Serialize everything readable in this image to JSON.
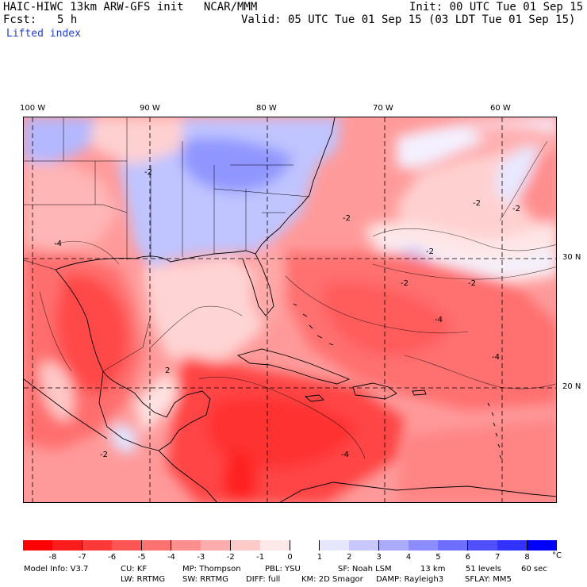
{
  "header": {
    "model_line": "HAIC-HIWC 13km ARW-GFS init   NCAR/MMM",
    "init_line": "Init: 00 UTC Tue 01 Sep 15",
    "fcst_label": "Fcst:",
    "fcst_value": "5 h",
    "valid_line": "Valid: 05 UTC Tue 01 Sep 15 (03 LDT Tue 01 Sep 15)",
    "field_name": "Lifted index"
  },
  "map": {
    "longitude_labels": [
      "100 W",
      "90 W",
      "80 W",
      "70 W",
      "60 W"
    ],
    "latitude_labels": [
      "30 N",
      "20 N"
    ],
    "contour_labels": [
      "-2",
      "-2",
      "-2",
      "-2",
      "-2",
      "-2",
      "-2",
      "-2",
      "-4",
      "-4",
      "-4",
      "-4",
      "2"
    ]
  },
  "colorbar": {
    "tick_labels": [
      "-8",
      "-7",
      "-6",
      "-5",
      "-4",
      "-3",
      "-2",
      "-1",
      "0",
      "1",
      "2",
      "3",
      "4",
      "5",
      "6",
      "7",
      "8"
    ],
    "unit": "°C",
    "colors": [
      "#ff0000",
      "#ff1c1c",
      "#ff3838",
      "#ff5555",
      "#ff7272",
      "#ff8f8f",
      "#ffacac",
      "#ffcaca",
      "#ffe8e8",
      "#ffffff",
      "#e6e6ff",
      "#c8c8ff",
      "#aaaaff",
      "#8c8cff",
      "#6e6eff",
      "#5050ff",
      "#3232ff",
      "#0000ff"
    ]
  },
  "footer": {
    "line1": [
      "Model Info: V3.7",
      "CU: KF",
      "MP: Thompson",
      "PBL: YSU",
      "SF: Noah LSM",
      "13 km",
      "51 levels",
      "60 sec"
    ],
    "line2": [
      "LW: RRTMG",
      "SW: RRTMG",
      "DIFF: full",
      "KM: 2D Smagor",
      "DAMP: Rayleigh3",
      "SFLAY: MM5"
    ]
  }
}
